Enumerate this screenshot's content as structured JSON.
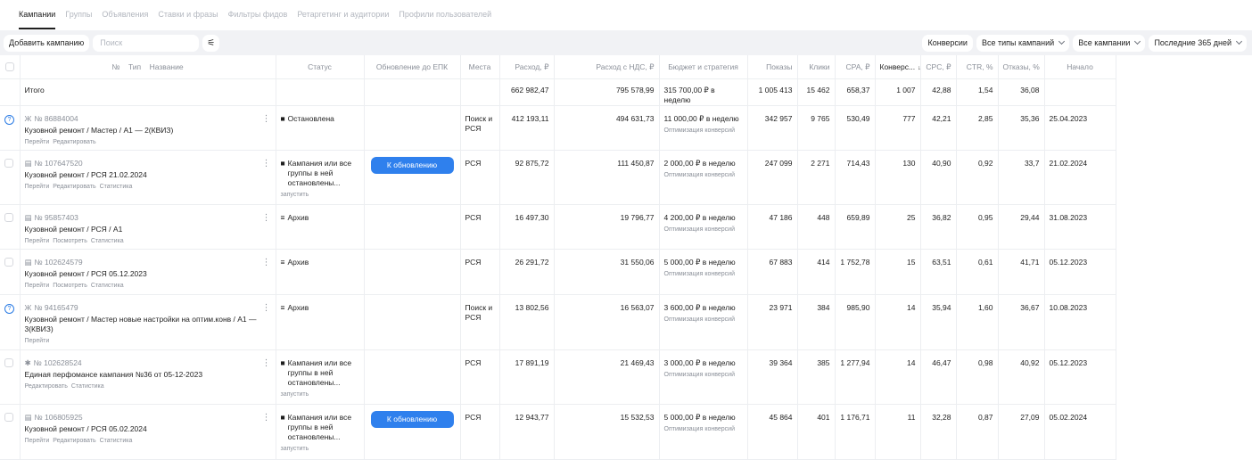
{
  "tabs": [
    {
      "label": "Кампании",
      "active": true
    },
    {
      "label": "Группы",
      "active": false
    },
    {
      "label": "Объявления",
      "active": false
    },
    {
      "label": "Ставки и фразы",
      "active": false
    },
    {
      "label": "Фильтры фидов",
      "active": false
    },
    {
      "label": "Ретаргетинг и аудитории",
      "active": false
    },
    {
      "label": "Профили пользователей",
      "active": false
    }
  ],
  "toolbar": {
    "add_campaign": "Добавить кампанию",
    "search_placeholder": "Поиск",
    "conversions": "Конверсии",
    "campaign_types": "Все типы кампаний",
    "campaigns": "Все кампании",
    "period": "Последние 365 дней"
  },
  "columns": {
    "no": "№",
    "type": "Тип",
    "name": "Название",
    "status": "Статус",
    "update_epk": "Обновление до ЕПК",
    "places": "Места",
    "spend": "Расход, ₽",
    "spend_vat": "Расход с НДС, ₽",
    "budget": "Бюджет и стратегия",
    "impressions": "Показы",
    "clicks": "Клики",
    "cpa": "CPA, ₽",
    "conversions": "Конверс...",
    "sort_arrow": "↓",
    "cpc": "CPC, ₽",
    "ctr": "CTR, %",
    "bounces": "Отказы, %",
    "start": "Начало"
  },
  "total": {
    "label": "Итого",
    "spend": "662 982,47",
    "spend_vat": "795 578,99",
    "budget": "315 700,00 ₽ в неделю",
    "impressions": "1 005 413",
    "clicks": "15 462",
    "cpa": "658,37",
    "conversions": "1 007",
    "cpc": "42,88",
    "ctr": "1,54",
    "bounces": "36,08"
  },
  "rows": [
    {
      "help": true,
      "type_icon": "Ж",
      "id": "№ 86884004",
      "name": "Кузовной ремонт / Мастер / А1 — 2(КВИЗ)",
      "links": [
        "Перейти",
        "Редактировать"
      ],
      "status_icon": "■",
      "status": "Остановлена",
      "status_hint": "",
      "update_btn": "",
      "places": "Поиск и РСЯ",
      "spend": "412 193,11",
      "spend_vat": "494 631,73",
      "budget": "11 000,00 ₽ в неделю",
      "strategy": "Оптимизация конверсий",
      "impressions": "342 957",
      "clicks": "9 765",
      "cpa": "530,49",
      "conversions": "777",
      "cpc": "42,21",
      "ctr": "2,85",
      "bounces": "35,36",
      "start": "25.04.2023",
      "h": 50
    },
    {
      "help": false,
      "type_icon": "▤",
      "id": "№ 107647520",
      "name": "Кузовной ремонт / РСЯ 21.02.2024",
      "links": [
        "Перейти",
        "Редактировать",
        "Статистика"
      ],
      "status_icon": "■",
      "status": "Кампания или все группы в ней остановлены...",
      "status_hint": "запустить",
      "update_btn": "К обновлению",
      "places": "РСЯ",
      "spend": "92 875,72",
      "spend_vat": "111 450,87",
      "budget": "2 000,00 ₽ в неделю",
      "strategy": "Оптимизация конверсий",
      "impressions": "247 099",
      "clicks": "2 271",
      "cpa": "714,43",
      "conversions": "130",
      "cpc": "40,90",
      "ctr": "0,92",
      "bounces": "33,7",
      "start": "21.02.2024",
      "h": 61
    },
    {
      "help": false,
      "type_icon": "▤",
      "id": "№ 95857403",
      "name": "Кузовной ремонт / РСЯ / А1",
      "links": [
        "Перейти",
        "Посмотреть",
        "Статистика"
      ],
      "status_icon": "≡",
      "status": "Архив",
      "status_hint": "",
      "update_btn": "",
      "places": "РСЯ",
      "spend": "16 497,30",
      "spend_vat": "19 796,77",
      "budget": "4 200,00 ₽ в неделю",
      "strategy": "Оптимизация конверсий",
      "impressions": "47 186",
      "clicks": "448",
      "cpa": "659,89",
      "conversions": "25",
      "cpc": "36,82",
      "ctr": "0,95",
      "bounces": "29,44",
      "start": "31.08.2023",
      "h": 50
    },
    {
      "help": false,
      "type_icon": "▤",
      "id": "№ 102624579",
      "name": "Кузовной ремонт / РСЯ 05.12.2023",
      "links": [
        "Перейти",
        "Посмотреть",
        "Статистика"
      ],
      "status_icon": "≡",
      "status": "Архив",
      "status_hint": "",
      "update_btn": "",
      "places": "РСЯ",
      "spend": "26 291,72",
      "spend_vat": "31 550,06",
      "budget": "5 000,00 ₽ в неделю",
      "strategy": "Оптимизация конверсий",
      "impressions": "67 883",
      "clicks": "414",
      "cpa": "1 752,78",
      "conversions": "15",
      "cpc": "63,51",
      "ctr": "0,61",
      "bounces": "41,71",
      "start": "05.12.2023",
      "h": 51
    },
    {
      "help": true,
      "type_icon": "Ж",
      "id": "№ 94165479",
      "name": "Кузовной ремонт / Мастер новые настройки на оптим.конв / А1 — 3(КВИЗ)",
      "links": [
        "Перейти"
      ],
      "status_icon": "≡",
      "status": "Архив",
      "status_hint": "",
      "update_btn": "",
      "places": "Поиск и РСЯ",
      "spend": "13 802,56",
      "spend_vat": "16 563,07",
      "budget": "3 600,00 ₽ в неделю",
      "strategy": "Оптимизация конверсий",
      "impressions": "23 971",
      "clicks": "384",
      "cpa": "985,90",
      "conversions": "14",
      "cpc": "35,94",
      "ctr": "1,60",
      "bounces": "36,67",
      "start": "10.08.2023",
      "h": 62
    },
    {
      "help": false,
      "type_icon": "✱",
      "id": "№ 102628524",
      "name": "Единая перфомансе кампания №36 от 05-12-2023",
      "links": [
        "Редактировать",
        "Статистика"
      ],
      "status_icon": "■",
      "status": "Кампания или все группы в ней остановлены...",
      "status_hint": "запустить",
      "update_btn": "",
      "places": "РСЯ",
      "spend": "17 891,19",
      "spend_vat": "21 469,43",
      "budget": "3 000,00 ₽ в неделю",
      "strategy": "Оптимизация конверсий",
      "impressions": "39 364",
      "clicks": "385",
      "cpa": "1 277,94",
      "conversions": "14",
      "cpc": "46,47",
      "ctr": "0,98",
      "bounces": "40,92",
      "start": "05.12.2023",
      "h": 61
    },
    {
      "help": false,
      "type_icon": "▤",
      "id": "№ 106805925",
      "name": "Кузовной ремонт / РСЯ 05.02.2024",
      "links": [
        "Перейти",
        "Редактировать",
        "Статистика"
      ],
      "status_icon": "■",
      "status": "Кампания или все группы в ней остановлены...",
      "status_hint": "запустить",
      "update_btn": "К обновлению",
      "places": "РСЯ",
      "spend": "12 943,77",
      "spend_vat": "15 532,53",
      "budget": "5 000,00 ₽ в неделю",
      "strategy": "Оптимизация конверсий",
      "impressions": "45 864",
      "clicks": "401",
      "cpa": "1 176,71",
      "conversions": "11",
      "cpc": "32,28",
      "ctr": "0,87",
      "bounces": "27,09",
      "start": "05.02.2024",
      "h": 62
    }
  ]
}
